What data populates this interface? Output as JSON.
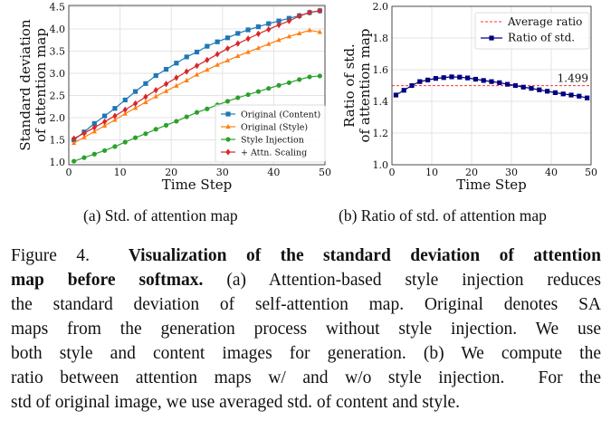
{
  "chart_data": [
    {
      "type": "line",
      "xlabel": "Time Step",
      "ylabel": [
        "Standard deviation",
        "of attention map"
      ],
      "xlim": [
        0,
        50
      ],
      "ylim": [
        0.94,
        4.53
      ],
      "xticks": [
        0,
        10,
        20,
        30,
        40,
        50
      ],
      "yticks": [
        1.0,
        1.5,
        2.0,
        2.5,
        3.0,
        3.5,
        4.0,
        4.5
      ],
      "grid": true,
      "legend": "lower-right",
      "x": [
        1,
        3,
        5,
        7,
        9,
        11,
        13,
        15,
        17,
        19,
        21,
        23,
        25,
        27,
        29,
        31,
        33,
        35,
        37,
        39,
        41,
        43,
        45,
        47,
        49
      ],
      "series": [
        {
          "name": "Original (Content)",
          "color": "#1f77b4",
          "marker": "square",
          "values": [
            1.5,
            1.68,
            1.87,
            2.04,
            2.21,
            2.4,
            2.59,
            2.77,
            2.95,
            3.09,
            3.23,
            3.37,
            3.48,
            3.61,
            3.71,
            3.8,
            3.9,
            3.98,
            4.05,
            4.12,
            4.18,
            4.24,
            4.3,
            4.37,
            4.41
          ]
        },
        {
          "name": "Original (Style)",
          "color": "#ff7f0e",
          "marker": "triangle",
          "values": [
            1.43,
            1.56,
            1.69,
            1.82,
            1.95,
            2.09,
            2.22,
            2.35,
            2.48,
            2.6,
            2.72,
            2.84,
            2.97,
            3.08,
            3.19,
            3.29,
            3.39,
            3.48,
            3.57,
            3.66,
            3.75,
            3.83,
            3.9,
            3.97,
            3.93
          ]
        },
        {
          "name": "Style Injection",
          "color": "#2ca02c",
          "marker": "circle",
          "values": [
            1.02,
            1.1,
            1.18,
            1.26,
            1.35,
            1.45,
            1.55,
            1.64,
            1.74,
            1.83,
            1.92,
            2.02,
            2.12,
            2.2,
            2.29,
            2.37,
            2.45,
            2.52,
            2.59,
            2.66,
            2.73,
            2.79,
            2.86,
            2.92,
            2.94
          ]
        },
        {
          "name": "+ Attn. Scaling",
          "color": "#d62728",
          "marker": "diamond",
          "values": [
            1.53,
            1.65,
            1.78,
            1.91,
            2.04,
            2.18,
            2.32,
            2.47,
            2.62,
            2.76,
            2.9,
            3.04,
            3.17,
            3.3,
            3.43,
            3.56,
            3.67,
            3.78,
            3.89,
            3.99,
            4.09,
            4.18,
            4.29,
            4.37,
            4.41
          ]
        }
      ]
    },
    {
      "type": "line",
      "xlabel": "Time Step",
      "ylabel": [
        "Ratio of std.",
        "of attention map"
      ],
      "xlim": [
        0,
        50
      ],
      "ylim": [
        1.0,
        2.0
      ],
      "xticks": [
        0,
        10,
        20,
        30,
        40,
        50
      ],
      "yticks": [
        1.0,
        1.2,
        1.4,
        1.6,
        1.8,
        2.0
      ],
      "grid": true,
      "legend": "top-right",
      "x": [
        1,
        3,
        5,
        7,
        9,
        11,
        13,
        15,
        17,
        19,
        21,
        23,
        25,
        27,
        29,
        31,
        33,
        35,
        37,
        39,
        41,
        43,
        45,
        47,
        49
      ],
      "hline": {
        "name": "Average ratio",
        "value": 1.499,
        "label": "1.499",
        "color": "#ff3030"
      },
      "series": [
        {
          "name": "Ratio of std.",
          "color": "#000080",
          "marker": "square",
          "values": [
            1.44,
            1.47,
            1.5,
            1.525,
            1.535,
            1.545,
            1.55,
            1.555,
            1.553,
            1.548,
            1.54,
            1.532,
            1.525,
            1.518,
            1.508,
            1.5,
            1.49,
            1.482,
            1.473,
            1.464,
            1.455,
            1.447,
            1.44,
            1.433,
            1.422
          ]
        }
      ]
    }
  ],
  "subcaptions": [
    "(a) Std. of attention map",
    "(b) Ratio of std. of attention map"
  ],
  "caption": {
    "lines": [
      {
        "pre": "Figure 4.  ",
        "bold": "Visualization of the standard deviation of attention",
        "post": ""
      },
      {
        "pre": "",
        "bold": "map before softmax.",
        "post": " (a) Attention-based style injection reduces"
      },
      {
        "pre": "the standard deviation of self-attention map. Original denotes SA",
        "bold": "",
        "post": ""
      },
      {
        "pre": "maps from the generation process without style injection. We use",
        "bold": "",
        "post": ""
      },
      {
        "pre": "both style and content images for generation. (b) We compute the",
        "bold": "",
        "post": ""
      },
      {
        "pre": "ratio between attention maps w/ and w/o style injection.  For the",
        "bold": "",
        "post": ""
      },
      {
        "pre": "std of original image, we use averaged std. of content and style.",
        "bold": "",
        "post": ""
      }
    ]
  }
}
